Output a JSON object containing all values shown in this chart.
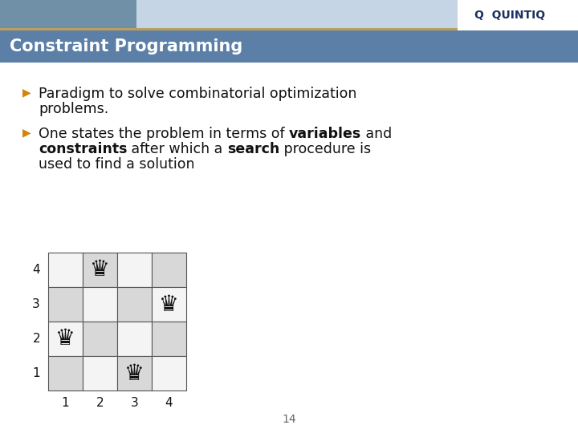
{
  "title": "Constraint Programming",
  "title_bg_color": "#5b7fa6",
  "title_text_color": "#ffffff",
  "bg_color": "#ffffff",
  "header_stripe_color": "#b8a060",
  "bullet_color": "#d4830a",
  "slide_bg": "#ffffff",
  "top_banner_color": "#6a7f9a",
  "bullet1_line1": "Paradigm to solve combinatorial optimization",
  "bullet1_line2": "problems.",
  "bullet2_lines": [
    [
      {
        "text": "One states the problem in terms of ",
        "bold": false
      },
      {
        "text": "variables",
        "bold": true
      },
      {
        "text": " and",
        "bold": false
      }
    ],
    [
      {
        "text": "constraints",
        "bold": true
      },
      {
        "text": " after which a ",
        "bold": false
      },
      {
        "text": "search",
        "bold": true
      },
      {
        "text": " procedure is",
        "bold": false
      }
    ],
    [
      {
        "text": "used to find a solution",
        "bold": false
      }
    ]
  ],
  "chess_queens": [
    {
      "col": 2,
      "row": 4
    },
    {
      "col": 4,
      "row": 3
    },
    {
      "col": 1,
      "row": 2
    },
    {
      "col": 3,
      "row": 1
    }
  ],
  "footer_number": "14",
  "font_size_title": 15,
  "font_size_body": 12.5,
  "font_size_chess_label": 11,
  "font_size_queen": 20
}
